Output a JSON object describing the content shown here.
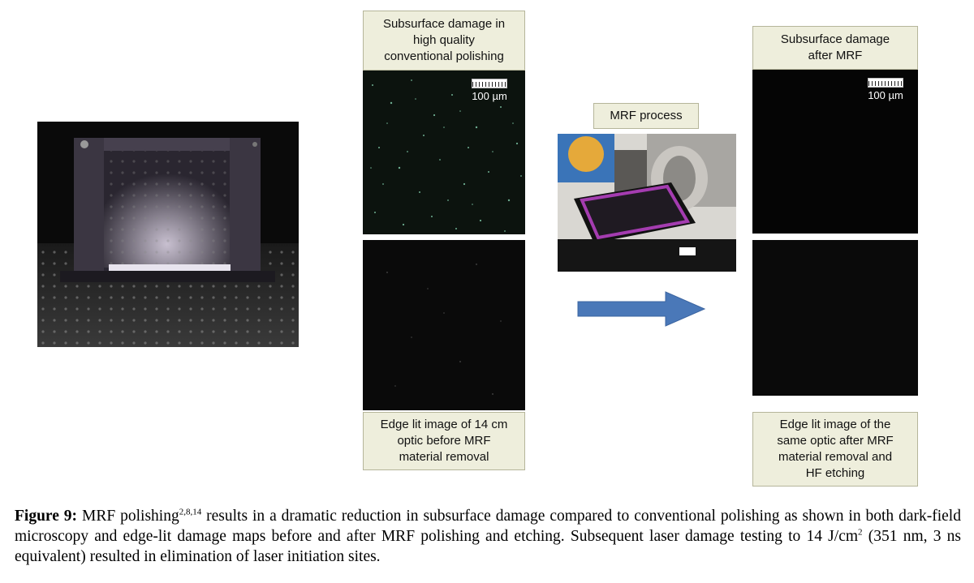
{
  "labels": {
    "conventional_top": "Subsurface damage in\nhigh quality\nconventional polishing",
    "mrf_process": "MRF process",
    "after_mrf_top": "Subsurface damage\nafter MRF",
    "edge_before": "Edge lit image of 14 cm\noptic before MRF\nmaterial removal",
    "edge_after": "Edge lit image of the\nsame optic after MRF\nmaterial removal and\nHF etching"
  },
  "scale_bars": {
    "before": "100 µm",
    "after": "100 µm"
  },
  "caption": {
    "figure_label": "Figure 9:",
    "part1": " MRF polishing",
    "refs": "2,8,14",
    "part2": " results in a dramatic reduction in subsurface damage compared to conventional polishing as shown in both dark-field microscopy and edge-lit damage maps before and after MRF polishing and etching. Subsequent laser damage testing to 14 J/cm",
    "sup2": "2",
    "part3": " (351 nm, 3 ns equivalent) resulted in elimination of laser initiation sites."
  },
  "icons": {
    "arrow": "right-arrow-icon"
  },
  "colors": {
    "label_bg": "#eeeedc",
    "arrow": "#4a78b8"
  }
}
